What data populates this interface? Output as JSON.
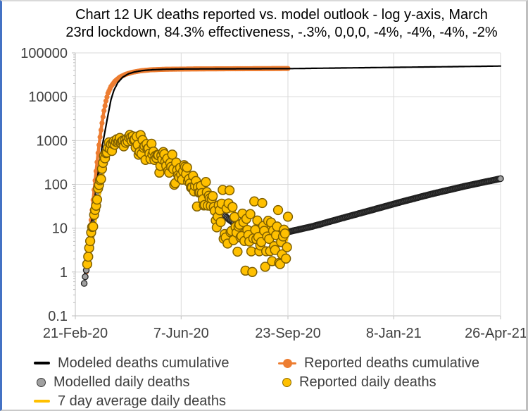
{
  "title": {
    "line1": "Chart 12 UK deaths reported vs. model outlook - log y-axis, March",
    "line2": "23rd lockdown, 84.3% effectiveness, -.3%, 0,0,0, -4%, -4%, -4%, -2%"
  },
  "colors": {
    "modeled_cumulative": "#000000",
    "reported_cumulative": "#ED7D31",
    "modelled_daily_fill": "#A0A0A0",
    "modelled_daily_stroke": "#202020",
    "reported_daily_fill": "#FFC000",
    "reported_daily_stroke": "#806000",
    "seven_day_avg": "#FFC000",
    "gridline": "#D9D9D9",
    "axis_line": "#BFBFBF",
    "tick_label": "#3F3F3F",
    "frame_left_border": "#4472C4"
  },
  "chart_data": {
    "type": "line",
    "y_axis": {
      "scale": "log",
      "tick_labels": [
        "100000",
        "10000",
        "1000",
        "100",
        "10",
        "1",
        "0.1"
      ],
      "tick_values": [
        100000,
        10000,
        1000,
        100,
        10,
        1,
        0.1
      ],
      "ylim": [
        0.1,
        100000
      ],
      "grid": true
    },
    "x_axis": {
      "tick_labels": [
        "21-Feb-20",
        "7-Jun-20",
        "23-Sep-20",
        "8-Jan-21",
        "26-Apr-21"
      ],
      "tick_days": [
        0,
        107,
        215,
        322,
        430
      ],
      "range_days": [
        0,
        430
      ],
      "grid": true
    },
    "series": [
      {
        "name": "Modeled deaths cumulative",
        "type": "line",
        "color": "#000000",
        "width": 2.2,
        "day_range": [
          9,
          430
        ],
        "anchors": [
          [
            9,
            0.7
          ],
          [
            12,
            2.5
          ],
          [
            15,
            8
          ],
          [
            18,
            25
          ],
          [
            21,
            80
          ],
          [
            24,
            260
          ],
          [
            27,
            700
          ],
          [
            30,
            1600
          ],
          [
            33,
            3800
          ],
          [
            36,
            8500
          ],
          [
            39,
            14000
          ],
          [
            43,
            21000
          ],
          [
            48,
            28000
          ],
          [
            54,
            33500
          ],
          [
            60,
            36800
          ],
          [
            68,
            39500
          ],
          [
            78,
            41200
          ],
          [
            90,
            42200
          ],
          [
            110,
            42900
          ],
          [
            150,
            43300
          ],
          [
            215,
            43700
          ],
          [
            280,
            45500
          ],
          [
            360,
            47800
          ],
          [
            430,
            50000
          ]
        ]
      },
      {
        "name": "Reported deaths cumulative",
        "type": "line-with-markers",
        "color": "#ED7D31",
        "width": 4.5,
        "marker_r": 3.6,
        "day_range": [
          11,
          215
        ],
        "anchors": [
          [
            11,
            1
          ],
          [
            13,
            3
          ],
          [
            15,
            9
          ],
          [
            17,
            26
          ],
          [
            19,
            75
          ],
          [
            21,
            200
          ],
          [
            23,
            520
          ],
          [
            25,
            1200
          ],
          [
            27,
            2500
          ],
          [
            29,
            4800
          ],
          [
            31,
            8000
          ],
          [
            33,
            12000
          ],
          [
            36,
            17000
          ],
          [
            40,
            22500
          ],
          [
            45,
            28000
          ],
          [
            51,
            32500
          ],
          [
            58,
            36200
          ],
          [
            66,
            39000
          ],
          [
            76,
            41000
          ],
          [
            90,
            42200
          ],
          [
            120,
            43000
          ],
          [
            160,
            43400
          ],
          [
            190,
            43700
          ],
          [
            215,
            44000
          ]
        ]
      },
      {
        "name": "Modelled daily deaths",
        "type": "scatter-daily",
        "fill": "#A0A0A0",
        "stroke": "#202020",
        "marker_r": 4.1,
        "day_range": [
          9,
          430
        ],
        "anchors": [
          [
            9,
            0.55
          ],
          [
            11,
            1.1
          ],
          [
            13,
            2.2
          ],
          [
            15,
            4.5
          ],
          [
            17,
            9
          ],
          [
            19,
            18
          ],
          [
            21,
            35
          ],
          [
            23,
            65
          ],
          [
            25,
            120
          ],
          [
            27,
            210
          ],
          [
            29,
            340
          ],
          [
            31,
            480
          ],
          [
            33,
            620
          ],
          [
            35,
            740
          ],
          [
            38,
            850
          ],
          [
            42,
            920
          ],
          [
            46,
            950
          ],
          [
            50,
            950
          ],
          [
            54,
            930
          ],
          [
            58,
            880
          ],
          [
            62,
            810
          ],
          [
            70,
            650
          ],
          [
            80,
            480
          ],
          [
            90,
            340
          ],
          [
            100,
            230
          ],
          [
            107,
            170
          ],
          [
            115,
            115
          ],
          [
            125,
            70
          ],
          [
            135,
            42
          ],
          [
            145,
            26
          ],
          [
            155,
            16
          ],
          [
            165,
            11
          ],
          [
            175,
            8.5
          ],
          [
            185,
            7.6
          ],
          [
            195,
            7.4
          ],
          [
            205,
            7.6
          ],
          [
            215,
            8.2
          ],
          [
            240,
            11
          ],
          [
            270,
            17
          ],
          [
            300,
            26
          ],
          [
            330,
            40
          ],
          [
            360,
            60
          ],
          [
            395,
            92
          ],
          [
            430,
            135
          ]
        ]
      },
      {
        "name": "Reported daily deaths",
        "type": "scatter-noisy",
        "fill": "#FFC000",
        "stroke": "#806000",
        "marker_r": 6.4,
        "day_range": [
          12,
          215
        ],
        "mean_scale": 1.05,
        "anchors": [
          [
            9,
            0.55
          ],
          [
            11,
            1.1
          ],
          [
            13,
            2.2
          ],
          [
            15,
            4.5
          ],
          [
            17,
            9
          ],
          [
            19,
            18
          ],
          [
            21,
            35
          ],
          [
            23,
            65
          ],
          [
            25,
            120
          ],
          [
            27,
            210
          ],
          [
            29,
            340
          ],
          [
            31,
            480
          ],
          [
            33,
            620
          ],
          [
            35,
            740
          ],
          [
            38,
            850
          ],
          [
            42,
            920
          ],
          [
            46,
            950
          ],
          [
            50,
            950
          ],
          [
            54,
            930
          ],
          [
            58,
            880
          ],
          [
            62,
            810
          ],
          [
            70,
            650
          ],
          [
            80,
            480
          ],
          [
            90,
            340
          ],
          [
            100,
            230
          ],
          [
            107,
            170
          ],
          [
            115,
            115
          ],
          [
            125,
            70
          ],
          [
            135,
            42
          ],
          [
            145,
            26
          ],
          [
            155,
            16
          ],
          [
            165,
            11
          ],
          [
            175,
            8.5
          ],
          [
            185,
            7.6
          ],
          [
            195,
            7.4
          ],
          [
            205,
            7.6
          ],
          [
            215,
            8.2
          ]
        ],
        "noise": {
          "seed": 20,
          "sigma_early": 0.06,
          "sigma_early_until_day": 45,
          "sigma_mid": 0.2,
          "sigma_mid_day": 110,
          "sigma_end": 0.34,
          "weekend_dip_from_day": 108,
          "clamp_min": 1,
          "clamp_max": 1400
        }
      },
      {
        "name": "7 day average daily deaths",
        "type": "rolling-average-line",
        "color": "#FFC000",
        "width": 2.8,
        "window_days": 7,
        "source_series": "Reported daily deaths",
        "day_range": [
          15,
          215
        ]
      }
    ]
  },
  "legend": {
    "items": [
      {
        "label": "Modeled deaths cumulative",
        "marker": "line",
        "color": "#000000"
      },
      {
        "label": "Reported deaths cumulative",
        "marker": "line-circle",
        "color": "#ED7D31"
      },
      {
        "label": "Modelled daily deaths",
        "marker": "circle",
        "fill": "#A0A0A0",
        "stroke": "#3A3A3A"
      },
      {
        "label": "Reported daily deaths",
        "marker": "circle",
        "fill": "#FFC000",
        "stroke": "#8A6A00"
      },
      {
        "label": "7 day average daily deaths",
        "marker": "line",
        "color": "#FFC000"
      }
    ]
  }
}
